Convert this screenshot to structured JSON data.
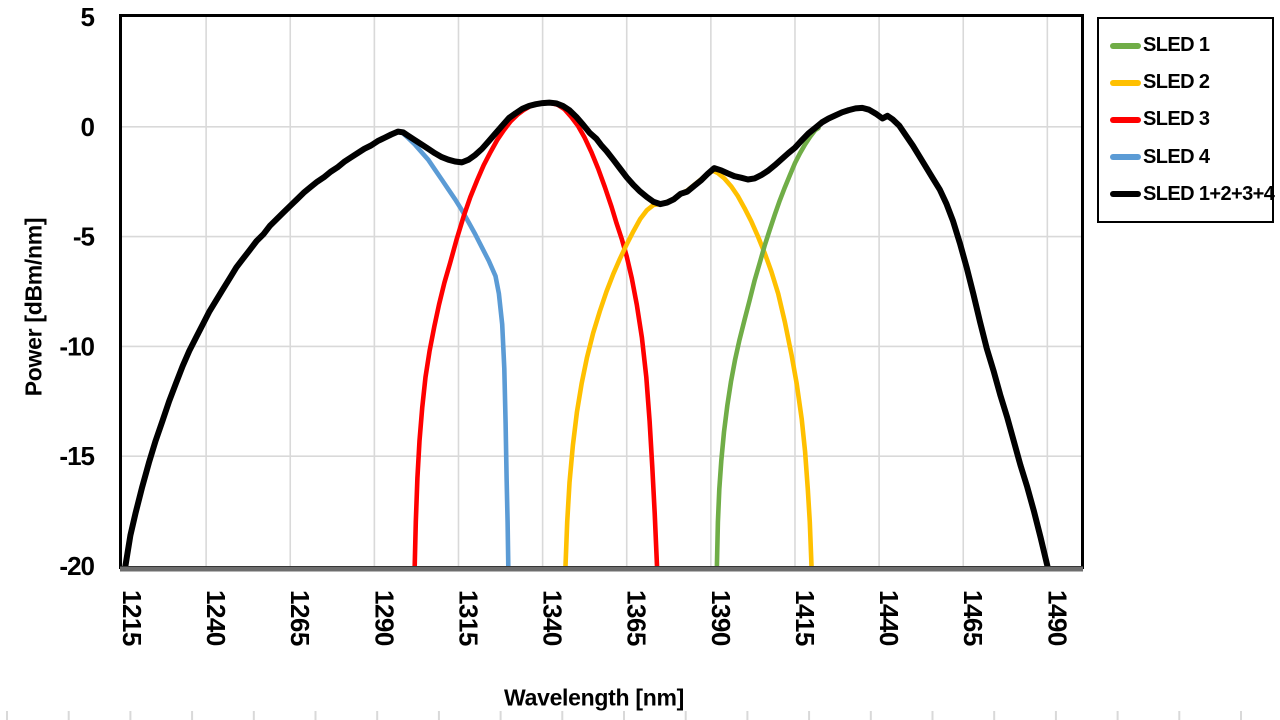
{
  "chart_data": {
    "type": "line",
    "title": "",
    "xlabel": "Wavelength [nm]",
    "ylabel": "Power [dBm/nm]",
    "xlim": [
      1215,
      1500
    ],
    "ylim": [
      -20,
      5
    ],
    "x_ticks": [
      1215,
      1240,
      1265,
      1290,
      1315,
      1340,
      1365,
      1390,
      1415,
      1440,
      1465,
      1490
    ],
    "y_ticks": [
      5,
      0,
      -5,
      -10,
      -15,
      -20
    ],
    "grid": true,
    "legend_position": "right-outside",
    "plot_order": [
      3,
      2,
      1,
      0,
      4
    ],
    "series": [
      {
        "name": "SLED 1",
        "color": "#70AD47",
        "points": [
          [
            1391.8,
            -20
          ],
          [
            1392.1,
            -18
          ],
          [
            1392.5,
            -16.5
          ],
          [
            1393.1,
            -15.2
          ],
          [
            1393.9,
            -13.9
          ],
          [
            1394.9,
            -12.7
          ],
          [
            1396,
            -11.6
          ],
          [
            1397.2,
            -10.6
          ],
          [
            1398.5,
            -9.7
          ],
          [
            1400,
            -8.8
          ],
          [
            1401.5,
            -7.9
          ],
          [
            1403,
            -7.0
          ],
          [
            1404.5,
            -6.2
          ],
          [
            1406,
            -5.4
          ],
          [
            1407.5,
            -4.7
          ],
          [
            1409,
            -4.0
          ],
          [
            1410.5,
            -3.35
          ],
          [
            1412,
            -2.75
          ],
          [
            1413.5,
            -2.2
          ],
          [
            1415,
            -1.65
          ],
          [
            1416.5,
            -1.2
          ],
          [
            1418,
            -0.8
          ],
          [
            1419.5,
            -0.45
          ],
          [
            1421,
            -0.15
          ],
          [
            1422,
            -0.05
          ]
        ]
      },
      {
        "name": "SLED 2",
        "color": "#FFC000",
        "points": [
          [
            1346.8,
            -20
          ],
          [
            1347.3,
            -18
          ],
          [
            1348,
            -16.2
          ],
          [
            1349,
            -14.5
          ],
          [
            1350.2,
            -13
          ],
          [
            1351.6,
            -11.7
          ],
          [
            1353.2,
            -10.5
          ],
          [
            1355,
            -9.4
          ],
          [
            1357,
            -8.4
          ],
          [
            1359,
            -7.5
          ],
          [
            1361,
            -6.7
          ],
          [
            1363,
            -6.0
          ],
          [
            1365,
            -5.35
          ],
          [
            1367,
            -4.75
          ],
          [
            1369,
            -4.2
          ],
          [
            1371,
            -3.8
          ],
          [
            1373,
            -3.55
          ],
          [
            1375,
            -3.52
          ],
          [
            1377,
            -3.42
          ],
          [
            1379,
            -3.28
          ],
          [
            1381,
            -3.05
          ],
          [
            1383,
            -2.9
          ],
          [
            1385,
            -2.65
          ],
          [
            1387,
            -2.4
          ],
          [
            1389,
            -2.15
          ],
          [
            1390.5,
            -2.0
          ],
          [
            1392,
            -2.1
          ],
          [
            1394,
            -2.35
          ],
          [
            1396,
            -2.7
          ],
          [
            1398,
            -3.15
          ],
          [
            1400,
            -3.7
          ],
          [
            1402,
            -4.3
          ],
          [
            1404,
            -5.0
          ],
          [
            1406,
            -5.75
          ],
          [
            1408,
            -6.6
          ],
          [
            1410,
            -7.6
          ],
          [
            1412,
            -8.9
          ],
          [
            1414,
            -10.4
          ],
          [
            1415.5,
            -11.7
          ],
          [
            1417,
            -13.3
          ],
          [
            1418,
            -14.8
          ],
          [
            1418.8,
            -16.5
          ],
          [
            1419.4,
            -18
          ],
          [
            1419.9,
            -20
          ]
        ]
      },
      {
        "name": "SLED 3",
        "color": "#FF0000",
        "points": [
          [
            1302,
            -20
          ],
          [
            1302.3,
            -18
          ],
          [
            1302.8,
            -16
          ],
          [
            1303.4,
            -14.3
          ],
          [
            1304.2,
            -12.8
          ],
          [
            1305.2,
            -11.4
          ],
          [
            1306.4,
            -10.2
          ],
          [
            1307.8,
            -9.1
          ],
          [
            1309.2,
            -8.1
          ],
          [
            1310.8,
            -7.1
          ],
          [
            1312.5,
            -6.2
          ],
          [
            1314.5,
            -5.1
          ],
          [
            1316.5,
            -4.1
          ],
          [
            1318.5,
            -3.2
          ],
          [
            1320.5,
            -2.45
          ],
          [
            1322.5,
            -1.75
          ],
          [
            1324.5,
            -1.15
          ],
          [
            1326.5,
            -0.6
          ],
          [
            1328.5,
            -0.15
          ],
          [
            1330.5,
            0.25
          ],
          [
            1332.5,
            0.55
          ],
          [
            1334.5,
            0.78
          ],
          [
            1336.5,
            0.95
          ],
          [
            1338.5,
            1.05
          ],
          [
            1340.5,
            1.1
          ],
          [
            1342.5,
            1.08
          ],
          [
            1344.5,
            1.0
          ],
          [
            1346.5,
            0.8
          ],
          [
            1348.5,
            0.45
          ],
          [
            1350.5,
            0.05
          ],
          [
            1352.5,
            -0.5
          ],
          [
            1354.5,
            -1.15
          ],
          [
            1356.5,
            -1.9
          ],
          [
            1358.5,
            -2.75
          ],
          [
            1360.5,
            -3.65
          ],
          [
            1362,
            -4.4
          ],
          [
            1363.5,
            -5.1
          ],
          [
            1365,
            -5.9
          ],
          [
            1366.5,
            -6.9
          ],
          [
            1368,
            -8.1
          ],
          [
            1369.5,
            -9.6
          ],
          [
            1370.8,
            -11.4
          ],
          [
            1371.8,
            -13.4
          ],
          [
            1372.6,
            -15.5
          ],
          [
            1373.3,
            -17.6
          ],
          [
            1374,
            -20
          ]
        ]
      },
      {
        "name": "SLED 4",
        "color": "#5B9BD5",
        "points": [
          [
            1298.5,
            -0.3
          ],
          [
            1300,
            -0.5
          ],
          [
            1302,
            -0.8
          ],
          [
            1304,
            -1.15
          ],
          [
            1306,
            -1.5
          ],
          [
            1308,
            -1.95
          ],
          [
            1310,
            -2.4
          ],
          [
            1312,
            -2.85
          ],
          [
            1314,
            -3.3
          ],
          [
            1316,
            -3.8
          ],
          [
            1318,
            -4.35
          ],
          [
            1320,
            -4.9
          ],
          [
            1322,
            -5.5
          ],
          [
            1324,
            -6.1
          ],
          [
            1326,
            -6.8
          ],
          [
            1327,
            -7.6
          ],
          [
            1328,
            -9.0
          ],
          [
            1328.6,
            -11.0
          ],
          [
            1329,
            -13.5
          ],
          [
            1329.3,
            -16.0
          ],
          [
            1329.6,
            -18.0
          ],
          [
            1329.8,
            -20
          ]
        ]
      },
      {
        "name": "SLED 1+2+3+4",
        "color": "#000000",
        "points": [
          [
            1216,
            -20
          ],
          [
            1217.5,
            -18.6
          ],
          [
            1219,
            -17.6
          ],
          [
            1221,
            -16.4
          ],
          [
            1223,
            -15.3
          ],
          [
            1225,
            -14.3
          ],
          [
            1227,
            -13.4
          ],
          [
            1229,
            -12.5
          ],
          [
            1231,
            -11.7
          ],
          [
            1233,
            -10.9
          ],
          [
            1235,
            -10.2
          ],
          [
            1237,
            -9.6
          ],
          [
            1239,
            -9.0
          ],
          [
            1241,
            -8.4
          ],
          [
            1243,
            -7.9
          ],
          [
            1245,
            -7.4
          ],
          [
            1247,
            -6.9
          ],
          [
            1249,
            -6.4
          ],
          [
            1251,
            -6.0
          ],
          [
            1253,
            -5.6
          ],
          [
            1255,
            -5.2
          ],
          [
            1257,
            -4.9
          ],
          [
            1259,
            -4.5
          ],
          [
            1261,
            -4.2
          ],
          [
            1263,
            -3.9
          ],
          [
            1265,
            -3.6
          ],
          [
            1267,
            -3.3
          ],
          [
            1269,
            -3.0
          ],
          [
            1271,
            -2.75
          ],
          [
            1273,
            -2.5
          ],
          [
            1275,
            -2.3
          ],
          [
            1277,
            -2.05
          ],
          [
            1279,
            -1.85
          ],
          [
            1281,
            -1.6
          ],
          [
            1283,
            -1.4
          ],
          [
            1285,
            -1.2
          ],
          [
            1287,
            -1.0
          ],
          [
            1289,
            -0.85
          ],
          [
            1291,
            -0.65
          ],
          [
            1293,
            -0.5
          ],
          [
            1295,
            -0.35
          ],
          [
            1297,
            -0.22
          ],
          [
            1298.5,
            -0.25
          ],
          [
            1300,
            -0.4
          ],
          [
            1302,
            -0.6
          ],
          [
            1304,
            -0.8
          ],
          [
            1306,
            -1.0
          ],
          [
            1308,
            -1.2
          ],
          [
            1310,
            -1.38
          ],
          [
            1312,
            -1.5
          ],
          [
            1314,
            -1.58
          ],
          [
            1316,
            -1.62
          ],
          [
            1318,
            -1.5
          ],
          [
            1320,
            -1.28
          ],
          [
            1322,
            -1.0
          ],
          [
            1324,
            -0.65
          ],
          [
            1326,
            -0.3
          ],
          [
            1328,
            0.05
          ],
          [
            1330,
            0.4
          ],
          [
            1332,
            0.62
          ],
          [
            1334,
            0.82
          ],
          [
            1336,
            0.95
          ],
          [
            1338,
            1.03
          ],
          [
            1340,
            1.08
          ],
          [
            1342,
            1.1
          ],
          [
            1344,
            1.07
          ],
          [
            1346,
            0.95
          ],
          [
            1348,
            0.75
          ],
          [
            1350,
            0.45
          ],
          [
            1352,
            0.1
          ],
          [
            1354,
            -0.28
          ],
          [
            1356,
            -0.55
          ],
          [
            1357.5,
            -0.85
          ],
          [
            1359,
            -1.1
          ],
          [
            1361,
            -1.5
          ],
          [
            1363,
            -1.9
          ],
          [
            1365,
            -2.3
          ],
          [
            1367,
            -2.65
          ],
          [
            1369,
            -2.95
          ],
          [
            1371,
            -3.2
          ],
          [
            1373,
            -3.42
          ],
          [
            1375,
            -3.52
          ],
          [
            1377,
            -3.45
          ],
          [
            1379,
            -3.3
          ],
          [
            1381,
            -3.05
          ],
          [
            1383,
            -2.95
          ],
          [
            1385,
            -2.7
          ],
          [
            1387,
            -2.45
          ],
          [
            1389,
            -2.15
          ],
          [
            1391,
            -1.88
          ],
          [
            1393,
            -1.98
          ],
          [
            1395,
            -2.12
          ],
          [
            1397,
            -2.25
          ],
          [
            1399,
            -2.32
          ],
          [
            1401,
            -2.4
          ],
          [
            1403,
            -2.35
          ],
          [
            1405,
            -2.2
          ],
          [
            1407,
            -2.0
          ],
          [
            1409,
            -1.75
          ],
          [
            1411,
            -1.48
          ],
          [
            1413,
            -1.2
          ],
          [
            1415,
            -0.95
          ],
          [
            1417,
            -0.62
          ],
          [
            1419,
            -0.3
          ],
          [
            1421,
            -0.05
          ],
          [
            1423,
            0.2
          ],
          [
            1425,
            0.38
          ],
          [
            1427,
            0.52
          ],
          [
            1429,
            0.66
          ],
          [
            1431,
            0.76
          ],
          [
            1433,
            0.84
          ],
          [
            1435,
            0.86
          ],
          [
            1437,
            0.78
          ],
          [
            1439,
            0.6
          ],
          [
            1441,
            0.38
          ],
          [
            1442.5,
            0.5
          ],
          [
            1444,
            0.34
          ],
          [
            1446,
            0.05
          ],
          [
            1448,
            -0.4
          ],
          [
            1450,
            -0.85
          ],
          [
            1452,
            -1.35
          ],
          [
            1454,
            -1.85
          ],
          [
            1456,
            -2.35
          ],
          [
            1458,
            -2.85
          ],
          [
            1460,
            -3.5
          ],
          [
            1462,
            -4.3
          ],
          [
            1464,
            -5.3
          ],
          [
            1466,
            -6.4
          ],
          [
            1468,
            -7.6
          ],
          [
            1470,
            -8.9
          ],
          [
            1472,
            -10.1
          ],
          [
            1474,
            -11.1
          ],
          [
            1476,
            -12.2
          ],
          [
            1478,
            -13.2
          ],
          [
            1480,
            -14.3
          ],
          [
            1482,
            -15.4
          ],
          [
            1484,
            -16.4
          ],
          [
            1486,
            -17.5
          ],
          [
            1488,
            -18.7
          ],
          [
            1490,
            -20
          ]
        ]
      }
    ]
  },
  "styles": {
    "gridline_color": "#D9D9D9",
    "plot_border_color": "#000000",
    "x_axis_line_color": "#6d6d6d",
    "tick_label_color": "#000000",
    "background": "#FFFFFF"
  },
  "bottom_ruler": {
    "tick_color": "#D9D9D9",
    "count": 21,
    "start_x": 7,
    "spacing": 61.7,
    "y": 711,
    "height": 9
  }
}
